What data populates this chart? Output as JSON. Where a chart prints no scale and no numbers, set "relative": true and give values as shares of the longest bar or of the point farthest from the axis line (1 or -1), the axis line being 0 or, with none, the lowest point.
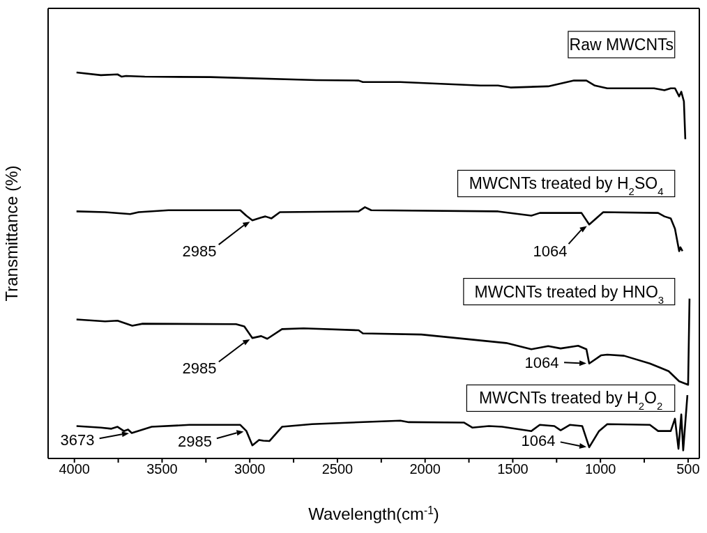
{
  "chart_data": {
    "type": "line",
    "relative": true,
    "xlabel": "Wavelength(cm$^{-1}$)",
    "ylabel": "Transmittance (%)",
    "xlim": [
      4150,
      436
    ],
    "xticks": [
      4000,
      {
        "value": 3750,
        "label": null
      },
      3500,
      {
        "value": 3250,
        "label": null
      },
      3000,
      {
        "value": 2750,
        "label": null
      },
      2500,
      {
        "value": 2250,
        "label": null
      },
      2000,
      {
        "value": 1750,
        "label": null
      },
      1500,
      {
        "value": 1250,
        "label": null
      },
      1000,
      {
        "value": 750,
        "label": null
      },
      500
    ],
    "grid": false,
    "line_style": "solid",
    "series": [
      {
        "name": "Raw MWCNTs",
        "color": "#000000",
        "x": [
          3988,
          3849,
          3754,
          3730,
          3706,
          3599,
          3225,
          2621,
          2379,
          2355,
          2141,
          1684,
          1584,
          1513,
          1298,
          1151,
          1080,
          1032,
          961,
          694,
          635,
          599,
          575,
          551,
          539,
          524,
          516
        ],
        "values": [
          1.0,
          0.993,
          0.995,
          0.989,
          0.991,
          0.989,
          0.988,
          0.98,
          0.979,
          0.975,
          0.975,
          0.966,
          0.966,
          0.961,
          0.964,
          0.979,
          0.979,
          0.966,
          0.959,
          0.959,
          0.954,
          0.959,
          0.959,
          0.938,
          0.95,
          0.925,
          0.827
        ]
      },
      {
        "name": "MWCNTs treated by H$_{2}$SO$_{4}$",
        "color": "#000000",
        "x": [
          3988,
          3825,
          3682,
          3634,
          3464,
          3054,
          3020,
          2985,
          2935,
          2911,
          2876,
          2828,
          2379,
          2343,
          2307,
          1584,
          1394,
          1346,
          1108,
          1064,
          984,
          671,
          635,
          599,
          575,
          551,
          544,
          532
        ],
        "values": [
          0.64,
          0.638,
          0.633,
          0.638,
          0.643,
          0.643,
          0.629,
          0.617,
          0.624,
          0.627,
          0.622,
          0.638,
          0.64,
          0.651,
          0.643,
          0.64,
          0.629,
          0.636,
          0.636,
          0.606,
          0.638,
          0.636,
          0.627,
          0.622,
          0.595,
          0.537,
          0.547,
          0.537
        ]
      },
      {
        "name": "MWCNTs treated by HNO$_{3}$",
        "color": "#000000",
        "x": [
          3988,
          3825,
          3754,
          3670,
          3611,
          3078,
          3031,
          2985,
          2935,
          2900,
          2816,
          2693,
          2379,
          2355,
          2021,
          1537,
          1394,
          1298,
          1227,
          1127,
          1080,
          1064,
          997,
          961,
          865,
          718,
          659,
          611,
          551,
          500,
          492
        ],
        "values": [
          0.36,
          0.355,
          0.357,
          0.344,
          0.349,
          0.348,
          0.342,
          0.312,
          0.317,
          0.31,
          0.335,
          0.337,
          0.332,
          0.324,
          0.321,
          0.299,
          0.283,
          0.291,
          0.285,
          0.292,
          0.283,
          0.246,
          0.267,
          0.269,
          0.266,
          0.246,
          0.235,
          0.226,
          0.2,
          0.191,
          0.414
        ]
      },
      {
        "name": "MWCNTs treated by H$_{2}$O$_{2}$",
        "color": "#000000",
        "x": [
          3988,
          3849,
          3789,
          3754,
          3718,
          3694,
          3673,
          3559,
          3344,
          3054,
          3019,
          2985,
          2947,
          2923,
          2888,
          2816,
          2645,
          2141,
          2093,
          1779,
          1731,
          1636,
          1561,
          1394,
          1346,
          1263,
          1227,
          1175,
          1104,
          1064,
          1008,
          961,
          718,
          671,
          599,
          575,
          555,
          539,
          528,
          504
        ],
        "values": [
          0.084,
          0.08,
          0.077,
          0.082,
          0.071,
          0.075,
          0.066,
          0.082,
          0.087,
          0.087,
          0.071,
          0.034,
          0.048,
          0.046,
          0.045,
          0.082,
          0.089,
          0.098,
          0.094,
          0.093,
          0.08,
          0.084,
          0.082,
          0.071,
          0.087,
          0.084,
          0.073,
          0.087,
          0.084,
          0.029,
          0.071,
          0.089,
          0.087,
          0.071,
          0.071,
          0.103,
          0.025,
          0.114,
          0.021,
          0.164
        ]
      }
    ],
    "annotations": [
      {
        "text": "2985",
        "x": 2985,
        "y": 0.617
      },
      {
        "text": "1064",
        "x": 1064,
        "y": 0.606
      },
      {
        "text": "2985",
        "x": 2985,
        "y": 0.312
      },
      {
        "text": "1064",
        "x": 1064,
        "y": 0.246
      },
      {
        "text": "3673",
        "x": 3673,
        "y": 0.066
      },
      {
        "text": "2985",
        "x": 3019,
        "y": 0.071
      },
      {
        "text": "1064",
        "x": 1064,
        "y": 0.029
      }
    ]
  }
}
